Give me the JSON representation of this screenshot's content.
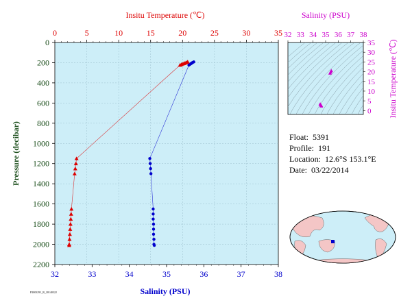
{
  "main_chart": {
    "top_axis_title": "Insitu Temperature (℃)",
    "bottom_axis_title": "Salinity (PSU)",
    "left_axis_title": "Pressure (decibar)",
    "top_ticks": [
      "0",
      "5",
      "10",
      "15",
      "20",
      "25",
      "30",
      "35"
    ],
    "bottom_ticks": [
      "32",
      "33",
      "34",
      "35",
      "36",
      "37",
      "38"
    ],
    "left_ticks": [
      "0",
      "200",
      "400",
      "600",
      "800",
      "1000",
      "1200",
      "1400",
      "1600",
      "1800",
      "2000",
      "2200"
    ],
    "footer_code": "P2003291_R_20140322"
  },
  "ts_chart": {
    "top_axis_title": "Salinity (PSU)",
    "right_axis_title": "Insitu Temperature (℃)",
    "top_ticks": [
      "32",
      "33",
      "34",
      "35",
      "36",
      "37",
      "38"
    ],
    "right_ticks": [
      "0",
      "5",
      "10",
      "15",
      "20",
      "25",
      "30",
      "35"
    ]
  },
  "info": {
    "float_label": "Float:",
    "float_value": "5391",
    "profile_label": "Profile:",
    "profile_value": "191",
    "location_label": "Location:",
    "location_value": "12.6°S  153.1°E",
    "date_label": "Date:",
    "date_value": "03/22/2014"
  },
  "colors": {
    "temperature": "#dd0000",
    "salinity": "#0000cc",
    "ts_accent": "#cc00cc",
    "plot_bg": "#cdeef8",
    "axis_text_left": "#1a4d1a"
  },
  "chart_data": [
    {
      "type": "line",
      "title": "",
      "series": [
        {
          "name": "Insitu Temperature (℃)",
          "axis": "top",
          "marker": "triangle",
          "xlim": [
            0,
            35
          ],
          "points": [
            {
              "pressure": 192,
              "value": 20.8
            },
            {
              "pressure": 198,
              "value": 20.6
            },
            {
              "pressure": 203,
              "value": 20.4
            },
            {
              "pressure": 208,
              "value": 20.2
            },
            {
              "pressure": 213,
              "value": 20.0
            },
            {
              "pressure": 218,
              "value": 19.8
            },
            {
              "pressure": 224,
              "value": 19.6
            },
            {
              "pressure": 1150,
              "value": 3.4
            },
            {
              "pressure": 1200,
              "value": 3.3
            },
            {
              "pressure": 1250,
              "value": 3.2
            },
            {
              "pressure": 1300,
              "value": 3.1
            },
            {
              "pressure": 1650,
              "value": 2.6
            },
            {
              "pressure": 1700,
              "value": 2.55
            },
            {
              "pressure": 1750,
              "value": 2.5
            },
            {
              "pressure": 1800,
              "value": 2.45
            },
            {
              "pressure": 1850,
              "value": 2.4
            },
            {
              "pressure": 1900,
              "value": 2.35
            },
            {
              "pressure": 1950,
              "value": 2.3
            },
            {
              "pressure": 2000,
              "value": 2.25
            },
            {
              "pressure": 2010,
              "value": 2.25
            }
          ]
        },
        {
          "name": "Salinity (PSU)",
          "axis": "bottom",
          "marker": "circle",
          "xlim": [
            32,
            38
          ],
          "points": [
            {
              "pressure": 192,
              "value": 35.73
            },
            {
              "pressure": 198,
              "value": 35.7
            },
            {
              "pressure": 203,
              "value": 35.68
            },
            {
              "pressure": 208,
              "value": 35.66
            },
            {
              "pressure": 213,
              "value": 35.64
            },
            {
              "pressure": 218,
              "value": 35.62
            },
            {
              "pressure": 224,
              "value": 35.6
            },
            {
              "pressure": 1150,
              "value": 34.55
            },
            {
              "pressure": 1200,
              "value": 34.56
            },
            {
              "pressure": 1250,
              "value": 34.57
            },
            {
              "pressure": 1300,
              "value": 34.58
            },
            {
              "pressure": 1650,
              "value": 34.64
            },
            {
              "pressure": 1700,
              "value": 34.64
            },
            {
              "pressure": 1750,
              "value": 34.64
            },
            {
              "pressure": 1800,
              "value": 34.65
            },
            {
              "pressure": 1850,
              "value": 34.65
            },
            {
              "pressure": 1900,
              "value": 34.65
            },
            {
              "pressure": 1950,
              "value": 34.66
            },
            {
              "pressure": 2000,
              "value": 34.66
            },
            {
              "pressure": 2010,
              "value": 34.67
            }
          ]
        }
      ],
      "ylabel": "Pressure (decibar)",
      "ylim": [
        0,
        2200
      ],
      "y_inverted": true,
      "grid": true
    },
    {
      "type": "scatter",
      "title": "",
      "xlabel": "Salinity (PSU)",
      "ylabel": "Insitu Temperature (℃)",
      "xlim": [
        32,
        38
      ],
      "ylim": [
        -2,
        35
      ],
      "points": [
        {
          "x": 35.45,
          "y": 20.5
        },
        {
          "x": 35.4,
          "y": 19.8
        },
        {
          "x": 35.35,
          "y": 19.2
        },
        {
          "x": 34.57,
          "y": 3.4
        },
        {
          "x": 34.6,
          "y": 3.0
        },
        {
          "x": 34.65,
          "y": 2.6
        },
        {
          "x": 34.66,
          "y": 2.3
        }
      ],
      "density_contours": true
    }
  ]
}
